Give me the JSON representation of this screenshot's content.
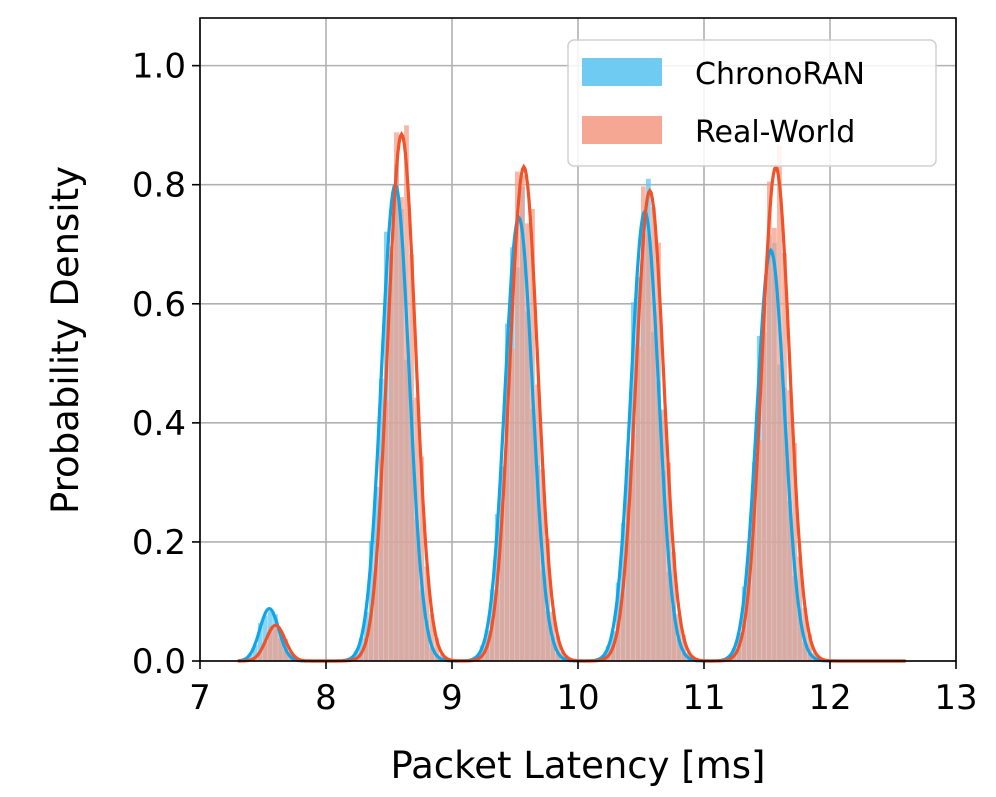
{
  "chart_data": {
    "type": "histogram",
    "title": "",
    "xlabel": "Packet Latency [ms]",
    "ylabel": "Probability Density",
    "xlim": [
      7,
      13
    ],
    "ylim": [
      0,
      1.08
    ],
    "xticks": [
      "7",
      "8",
      "9",
      "10",
      "11",
      "12",
      "13"
    ],
    "yticks": [
      "0.0",
      "0.2",
      "0.4",
      "0.6",
      "0.8",
      "1.0"
    ],
    "grid": true,
    "legend_position": "top-right",
    "series": [
      {
        "name": "ChronoRAN",
        "color": "#0ea5e9",
        "fill_color": "#60c5f1",
        "peaks": [
          {
            "center": 7.55,
            "height": 0.088
          },
          {
            "center": 8.55,
            "height": 0.8
          },
          {
            "center": 9.53,
            "height": 0.745
          },
          {
            "center": 10.53,
            "height": 0.755
          },
          {
            "center": 11.53,
            "height": 0.69
          }
        ]
      },
      {
        "name": "Real-World",
        "color": "#f0532a",
        "fill_color": "#f59d87",
        "peaks": [
          {
            "center": 7.6,
            "height": 0.06
          },
          {
            "center": 8.6,
            "height": 0.885
          },
          {
            "center": 9.57,
            "height": 0.83
          },
          {
            "center": 10.57,
            "height": 0.79
          },
          {
            "center": 11.57,
            "height": 0.83
          }
        ]
      }
    ]
  }
}
